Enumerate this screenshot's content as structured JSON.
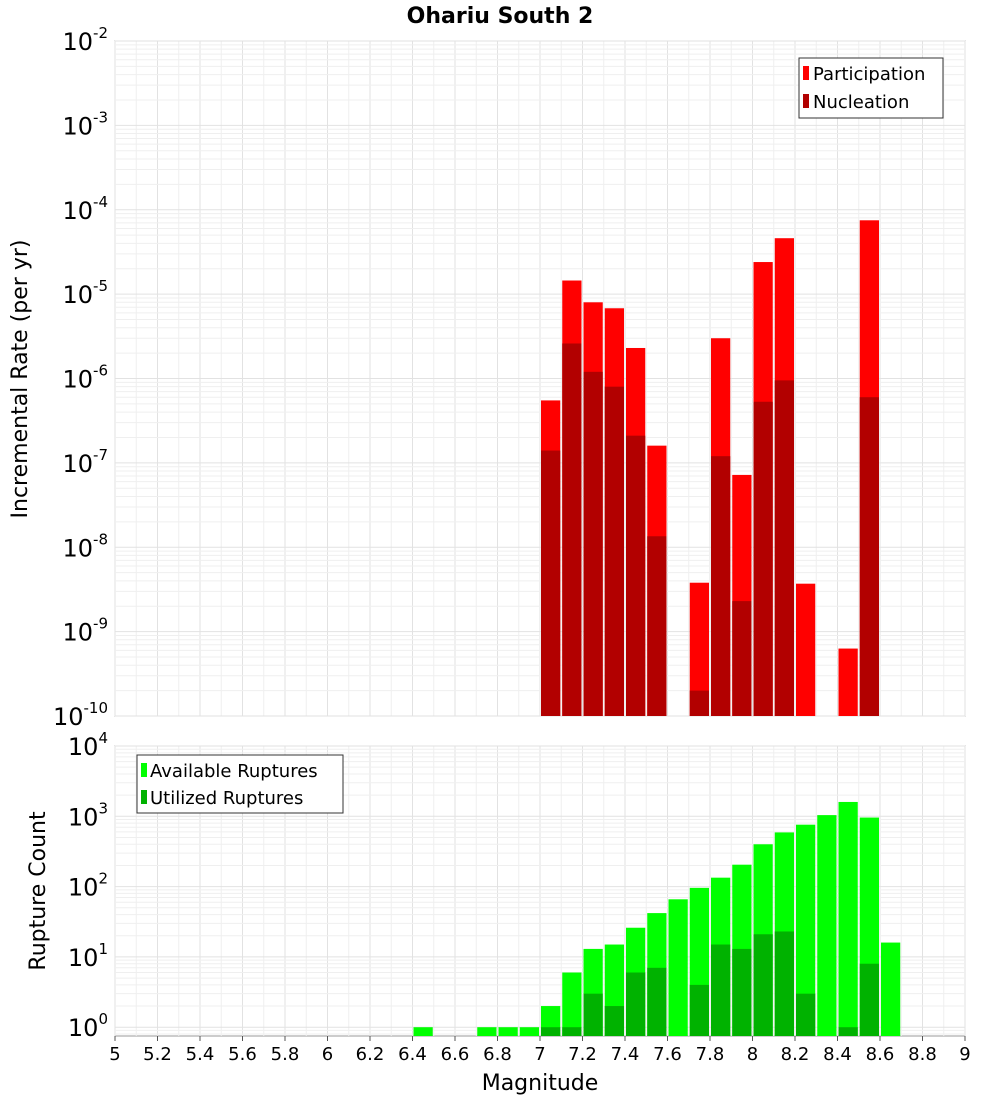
{
  "chart_data": [
    {
      "type": "bar",
      "title": "Ohariu South 2",
      "xlabel": "",
      "ylabel": "Incremental Rate (per yr)",
      "y_scale": "log",
      "ylim": [
        1e-10,
        0.01
      ],
      "y_ticks": [
        {
          "base": "10",
          "exp": "-2"
        },
        {
          "base": "10",
          "exp": "-3"
        },
        {
          "base": "10",
          "exp": "-4"
        },
        {
          "base": "10",
          "exp": "-5"
        },
        {
          "base": "10",
          "exp": "-6"
        },
        {
          "base": "10",
          "exp": "-7"
        },
        {
          "base": "10",
          "exp": "-8"
        },
        {
          "base": "10",
          "exp": "-9"
        },
        {
          "base": "10",
          "exp": "-10"
        }
      ],
      "legend_position": "top-right",
      "x": [
        7.05,
        7.15,
        7.25,
        7.35,
        7.45,
        7.55,
        7.75,
        7.85,
        7.95,
        8.05,
        8.15,
        8.25,
        8.45,
        8.55
      ],
      "series": [
        {
          "name": "Participation",
          "color": "#ff0000",
          "values": [
            5.5e-07,
            1.45e-05,
            8e-06,
            6.8e-06,
            2.3e-06,
            1.6e-07,
            3.8e-09,
            3e-06,
            7.2e-08,
            2.4e-05,
            4.6e-05,
            3.7e-09,
            6.3e-10,
            7.5e-05
          ]
        },
        {
          "name": "Nucleation",
          "color": "#b20000",
          "values": [
            1.4e-07,
            2.6e-06,
            1.2e-06,
            8e-07,
            2.1e-07,
            1.35e-08,
            2e-10,
            1.2e-07,
            2.3e-09,
            5.3e-07,
            9.5e-07,
            null,
            null,
            6e-07
          ]
        }
      ]
    },
    {
      "type": "bar",
      "title": "",
      "xlabel": "Magnitude",
      "ylabel": "Rupture Count",
      "y_scale": "log",
      "ylim": [
        0.75,
        10000
      ],
      "y_ticks": [
        {
          "base": "10",
          "exp": "4"
        },
        {
          "base": "10",
          "exp": "3"
        },
        {
          "base": "10",
          "exp": "2"
        },
        {
          "base": "10",
          "exp": "1"
        },
        {
          "base": "10",
          "exp": "0"
        }
      ],
      "xlim": [
        5,
        9
      ],
      "x_tick_labels": [
        "5",
        "5.2",
        "5.4",
        "5.6",
        "5.8",
        "6",
        "6.2",
        "6.4",
        "6.6",
        "6.8",
        "7",
        "7.2",
        "7.4",
        "7.6",
        "7.8",
        "8",
        "8.2",
        "8.4",
        "8.6",
        "8.8",
        "9"
      ],
      "legend_position": "top-left",
      "x": [
        6.45,
        6.75,
        6.85,
        6.95,
        7.05,
        7.15,
        7.25,
        7.35,
        7.45,
        7.55,
        7.65,
        7.75,
        7.85,
        7.95,
        8.05,
        8.15,
        8.25,
        8.35,
        8.45,
        8.55,
        8.65
      ],
      "series": [
        {
          "name": "Available Ruptures",
          "color": "#00ff00",
          "values": [
            1,
            1,
            1,
            1,
            2,
            6,
            13,
            15,
            26,
            42,
            66,
            96,
            134,
            205,
            400,
            590,
            760,
            1040,
            1600,
            960,
            16
          ]
        },
        {
          "name": "Utilized Ruptures",
          "color": "#00b200",
          "values": [
            null,
            null,
            null,
            null,
            1,
            1,
            3,
            2,
            6,
            7,
            null,
            4,
            15,
            13,
            21,
            23,
            3,
            null,
            1,
            8,
            null
          ]
        }
      ]
    }
  ]
}
